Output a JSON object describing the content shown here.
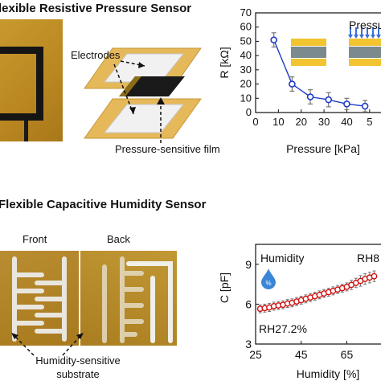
{
  "top": {
    "title": "lexible Resistive Pressure Sensor",
    "electrodes_label": "Electrodes",
    "film_label": "Pressure-sensitive film"
  },
  "bottom": {
    "title": "Flexible Capacitive Humidity Sensor",
    "front_label": "Front",
    "back_label": "Back",
    "substrate_label": "Humidity-sensitive substrate",
    "substrate_line1": "Humidity-sensitive",
    "substrate_line2": "substrate"
  },
  "chart_data": [
    {
      "type": "line",
      "xlabel": "Pressure [kPa]",
      "ylabel": "R [kΩ]",
      "xlim": [
        0,
        55
      ],
      "ylim": [
        0,
        70
      ],
      "xticks": [
        "0",
        "10",
        "20",
        "30",
        "40",
        "5"
      ],
      "yticks": [
        "0",
        "10",
        "20",
        "30",
        "40",
        "50",
        "60",
        "70"
      ],
      "annotation": "Pressu",
      "series": [
        {
          "x": [
            8,
            16,
            24,
            32,
            40,
            48
          ],
          "y": [
            51,
            20,
            11,
            9,
            6,
            4.5
          ],
          "err": [
            5,
            5,
            5,
            5,
            4,
            4
          ],
          "color": "#1f3cc8"
        }
      ]
    },
    {
      "type": "scatter",
      "xlabel": "Humidity [%]",
      "ylabel": "C [pF]",
      "xlim": [
        25,
        80
      ],
      "ylim": [
        3,
        10.5
      ],
      "xticks": [
        "25",
        "45",
        "65"
      ],
      "yticks": [
        "3",
        "6",
        "9"
      ],
      "annotations": [
        "Humidity",
        "RH8",
        "RH27.2%"
      ],
      "drop_symbol": "%",
      "series": [
        {
          "x": [
            27,
            29,
            31,
            33,
            35,
            37,
            39,
            41,
            43,
            45,
            47,
            49,
            51,
            53,
            55,
            57,
            59,
            61,
            63,
            65,
            67,
            69,
            71,
            73,
            75,
            77
          ],
          "y": [
            5.65,
            5.7,
            5.75,
            5.85,
            5.9,
            5.95,
            6.05,
            6.1,
            6.2,
            6.3,
            6.4,
            6.5,
            6.6,
            6.7,
            6.8,
            6.9,
            7.0,
            7.1,
            7.2,
            7.3,
            7.45,
            7.6,
            7.75,
            7.9,
            8.0,
            8.1
          ],
          "err": [
            0.3,
            0.3,
            0.3,
            0.3,
            0.3,
            0.3,
            0.3,
            0.3,
            0.3,
            0.3,
            0.3,
            0.3,
            0.3,
            0.3,
            0.3,
            0.3,
            0.3,
            0.3,
            0.3,
            0.3,
            0.35,
            0.35,
            0.4,
            0.4,
            0.4,
            0.4
          ],
          "color": "#d01010"
        }
      ]
    }
  ]
}
